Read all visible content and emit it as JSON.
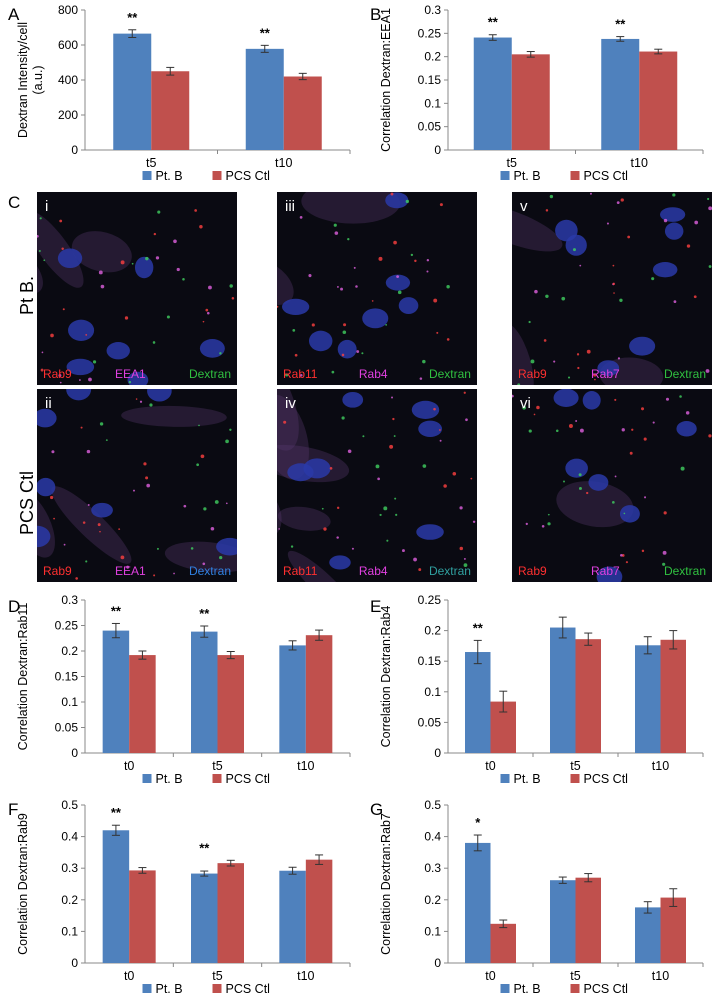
{
  "colors": {
    "blue": "#4f81bd",
    "red": "#c0504d",
    "axis": "#888888",
    "error": "#333333"
  },
  "panel_letters": [
    "A",
    "B",
    "C",
    "D",
    "E",
    "F",
    "G"
  ],
  "micrographs": {
    "row_labels": [
      "Pt B.",
      "PCS Ctl"
    ],
    "tiles": [
      {
        "numeral": "i",
        "stains": [
          {
            "text": "Rab9",
            "color": "#ff3030"
          },
          {
            "text": "EEA1",
            "color": "#e040e0"
          },
          {
            "text": "Dextran",
            "color": "#30c040"
          }
        ]
      },
      {
        "numeral": "iii",
        "stains": [
          {
            "text": "Rab11",
            "color": "#ff3030"
          },
          {
            "text": "Rab4",
            "color": "#e040e0"
          },
          {
            "text": "Dextran",
            "color": "#30c040"
          }
        ]
      },
      {
        "numeral": "v",
        "stains": [
          {
            "text": "Rab9",
            "color": "#ff3030"
          },
          {
            "text": "Rab7",
            "color": "#e040e0"
          },
          {
            "text": "Dextran",
            "color": "#30c040"
          }
        ]
      },
      {
        "numeral": "ii",
        "stains": [
          {
            "text": "Rab9",
            "color": "#ff3030"
          },
          {
            "text": "EEA1",
            "color": "#e040e0"
          },
          {
            "text": "Dextran",
            "color": "#3080e0"
          }
        ]
      },
      {
        "numeral": "iv",
        "stains": [
          {
            "text": "Rab11",
            "color": "#ff3030"
          },
          {
            "text": "Rab4",
            "color": "#e040e0"
          },
          {
            "text": "Dextran",
            "color": "#30a0a0"
          }
        ]
      },
      {
        "numeral": "vi",
        "stains": [
          {
            "text": "Rab9",
            "color": "#ff3030"
          },
          {
            "text": "Rab7",
            "color": "#e040e0"
          },
          {
            "text": "Dextran",
            "color": "#30c040"
          }
        ]
      }
    ]
  },
  "chart_data": [
    {
      "id": "A",
      "type": "bar",
      "ylabel": "Dextran Intensity/cell\n(a.u.)",
      "categories": [
        "t5",
        "t10"
      ],
      "ylim": [
        0,
        800
      ],
      "yticks": [
        "0",
        "200",
        "400",
        "600",
        "800"
      ],
      "series": [
        {
          "name": "Pt. B",
          "values": [
            665,
            578
          ],
          "errors": [
            22,
            20
          ]
        },
        {
          "name": "PCS Ctl",
          "values": [
            450,
            420
          ],
          "errors": [
            22,
            18
          ]
        }
      ],
      "annotations": [
        "**",
        "**"
      ],
      "legend": "bottom"
    },
    {
      "id": "B",
      "type": "bar",
      "ylabel": "Correlation Dextran:EEA1",
      "categories": [
        "t5",
        "t10"
      ],
      "ylim": [
        0,
        0.3
      ],
      "yticks": [
        "0",
        "0.05",
        "0.1",
        "0.15",
        "0.2",
        "0.25",
        "0.3"
      ],
      "series": [
        {
          "name": "Pt. B",
          "values": [
            0.241,
            0.238
          ],
          "errors": [
            0.006,
            0.005
          ]
        },
        {
          "name": "PCS Ctl",
          "values": [
            0.205,
            0.211
          ],
          "errors": [
            0.006,
            0.005
          ]
        }
      ],
      "annotations": [
        "**",
        "**"
      ],
      "legend": "bottom"
    },
    {
      "id": "D",
      "type": "bar",
      "ylabel": "Correlation Dextran:Rab11",
      "categories": [
        "t0",
        "t5",
        "t10"
      ],
      "ylim": [
        0,
        0.3
      ],
      "yticks": [
        "0",
        "0.05",
        "0.1",
        "0.15",
        "0.2",
        "0.25",
        "0.3"
      ],
      "series": [
        {
          "name": "Pt. B",
          "values": [
            0.24,
            0.238,
            0.211
          ],
          "errors": [
            0.014,
            0.011,
            0.009
          ]
        },
        {
          "name": "PCS Ctl",
          "values": [
            0.192,
            0.192,
            0.231
          ],
          "errors": [
            0.008,
            0.007,
            0.01
          ]
        }
      ],
      "annotations": [
        "**",
        "**",
        ""
      ],
      "legend": "bottom"
    },
    {
      "id": "E",
      "type": "bar",
      "ylabel": "Correlation Dextran:Rab4",
      "categories": [
        "t0",
        "t5",
        "t10"
      ],
      "ylim": [
        0,
        0.25
      ],
      "yticks": [
        "0",
        "0.05",
        "0.1",
        "0.15",
        "0.2",
        "0.25"
      ],
      "series": [
        {
          "name": "Pt. B",
          "values": [
            0.165,
            0.205,
            0.176
          ],
          "errors": [
            0.019,
            0.017,
            0.014
          ]
        },
        {
          "name": "PCS Ctl",
          "values": [
            0.084,
            0.186,
            0.185
          ],
          "errors": [
            0.017,
            0.01,
            0.015
          ]
        }
      ],
      "annotations": [
        "**",
        "",
        ""
      ],
      "legend": "bottom"
    },
    {
      "id": "F",
      "type": "bar",
      "ylabel": "Correlation Dextran:Rab9",
      "categories": [
        "t0",
        "t5",
        "t10"
      ],
      "ylim": [
        0,
        0.5
      ],
      "yticks": [
        "0",
        "0.1",
        "0.2",
        "0.3",
        "0.4",
        "0.5"
      ],
      "series": [
        {
          "name": "Pt. B",
          "values": [
            0.42,
            0.283,
            0.292
          ],
          "errors": [
            0.016,
            0.008,
            0.011
          ]
        },
        {
          "name": "PCS Ctl",
          "values": [
            0.293,
            0.316,
            0.327
          ],
          "errors": [
            0.009,
            0.009,
            0.015
          ]
        }
      ],
      "annotations": [
        "**",
        "**",
        ""
      ],
      "legend": "bottom"
    },
    {
      "id": "G",
      "type": "bar",
      "ylabel": "Correlation Dextran:Rab7",
      "categories": [
        "t0",
        "t5",
        "t10"
      ],
      "ylim": [
        0,
        0.5
      ],
      "yticks": [
        "0",
        "0.1",
        "0.2",
        "0.3",
        "0.4",
        "0.5"
      ],
      "series": [
        {
          "name": "Pt. B",
          "values": [
            0.38,
            0.262,
            0.176
          ],
          "errors": [
            0.025,
            0.01,
            0.018
          ]
        },
        {
          "name": "PCS Ctl",
          "values": [
            0.124,
            0.27,
            0.207
          ],
          "errors": [
            0.012,
            0.013,
            0.028
          ]
        }
      ],
      "annotations": [
        "*",
        "",
        ""
      ],
      "legend": "bottom"
    }
  ]
}
